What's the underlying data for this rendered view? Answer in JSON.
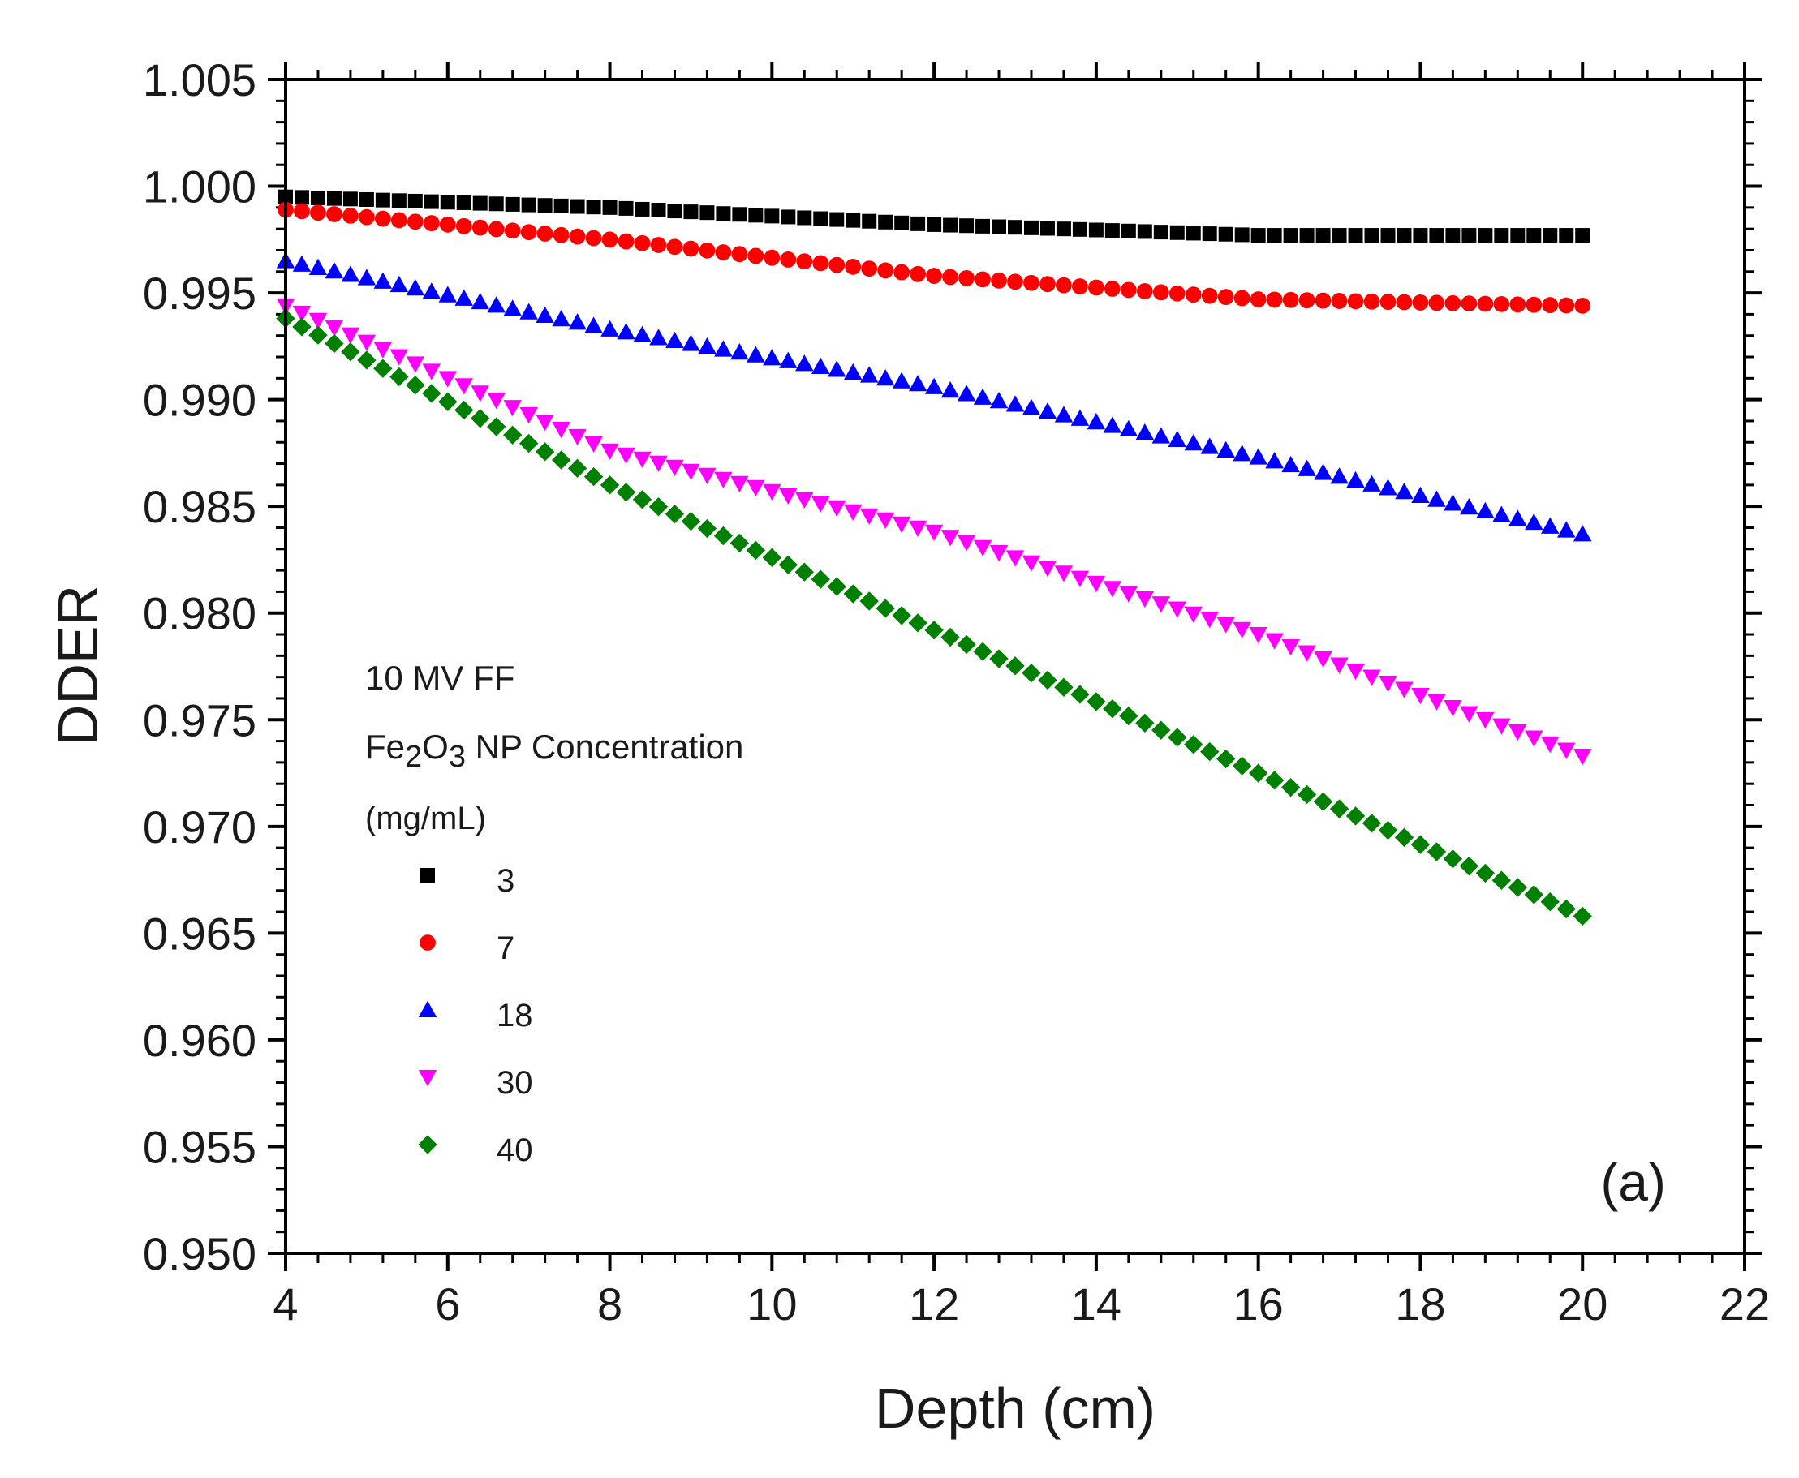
{
  "chart_data": {
    "type": "scatter",
    "xlabel": "Depth (cm)",
    "ylabel": "DDER",
    "xlim": [
      4,
      22
    ],
    "ylim": [
      0.95,
      1.005
    ],
    "x_ticks": [
      4,
      6,
      8,
      10,
      12,
      14,
      16,
      18,
      20,
      22
    ],
    "x_tick_labels": [
      "4",
      "6",
      "8",
      "10",
      "12",
      "14",
      "16",
      "18",
      "20",
      "22"
    ],
    "y_ticks": [
      0.95,
      0.955,
      0.96,
      0.965,
      0.97,
      0.975,
      0.98,
      0.985,
      0.99,
      0.995,
      1.0,
      1.005
    ],
    "y_tick_labels": [
      "0.950",
      "0.955",
      "0.960",
      "0.965",
      "0.970",
      "0.975",
      "0.980",
      "0.985",
      "0.990",
      "0.995",
      "1.000",
      "1.005"
    ],
    "x_range": {
      "start": 4,
      "end": 20,
      "step": 0.2
    },
    "legend": {
      "title_lines": [
        "10 MV FF",
        "Fe2O3 NP Concentration",
        "(mg/mL)"
      ],
      "title_formula": {
        "base1": "Fe",
        "sub1": "2",
        "base2": "O",
        "sub2": "3",
        "rest": " NP Concentration"
      },
      "placement": "left-center"
    },
    "panel_label": "(a)",
    "series": [
      {
        "name": "3",
        "color": "#000000",
        "marker": "square",
        "anchors": [
          [
            4,
            0.9995
          ],
          [
            8,
            0.999
          ],
          [
            12,
            0.9982
          ],
          [
            16,
            0.9977
          ],
          [
            20,
            0.9977
          ]
        ]
      },
      {
        "name": "7",
        "color": "#ff0000",
        "marker": "circle",
        "anchors": [
          [
            4,
            0.9989
          ],
          [
            8,
            0.9975
          ],
          [
            12,
            0.9958
          ],
          [
            16,
            0.9947
          ],
          [
            20,
            0.9944
          ]
        ]
      },
      {
        "name": "18",
        "color": "#0000ff",
        "marker": "triangle-up",
        "anchors": [
          [
            4,
            0.9965
          ],
          [
            8,
            0.9933
          ],
          [
            12,
            0.9906
          ],
          [
            16,
            0.9873
          ],
          [
            20,
            0.9837
          ]
        ]
      },
      {
        "name": "30",
        "color": "#ff00ff",
        "marker": "triangle-down",
        "anchors": [
          [
            4,
            0.9944
          ],
          [
            8,
            0.9876
          ],
          [
            12,
            0.9838
          ],
          [
            16,
            0.979
          ],
          [
            20,
            0.9733
          ]
        ]
      },
      {
        "name": "40",
        "color": "#008000",
        "marker": "diamond",
        "anchors": [
          [
            4,
            0.9938
          ],
          [
            8,
            0.986
          ],
          [
            12,
            0.9792
          ],
          [
            16,
            0.9725
          ],
          [
            20,
            0.9658
          ]
        ]
      }
    ]
  }
}
